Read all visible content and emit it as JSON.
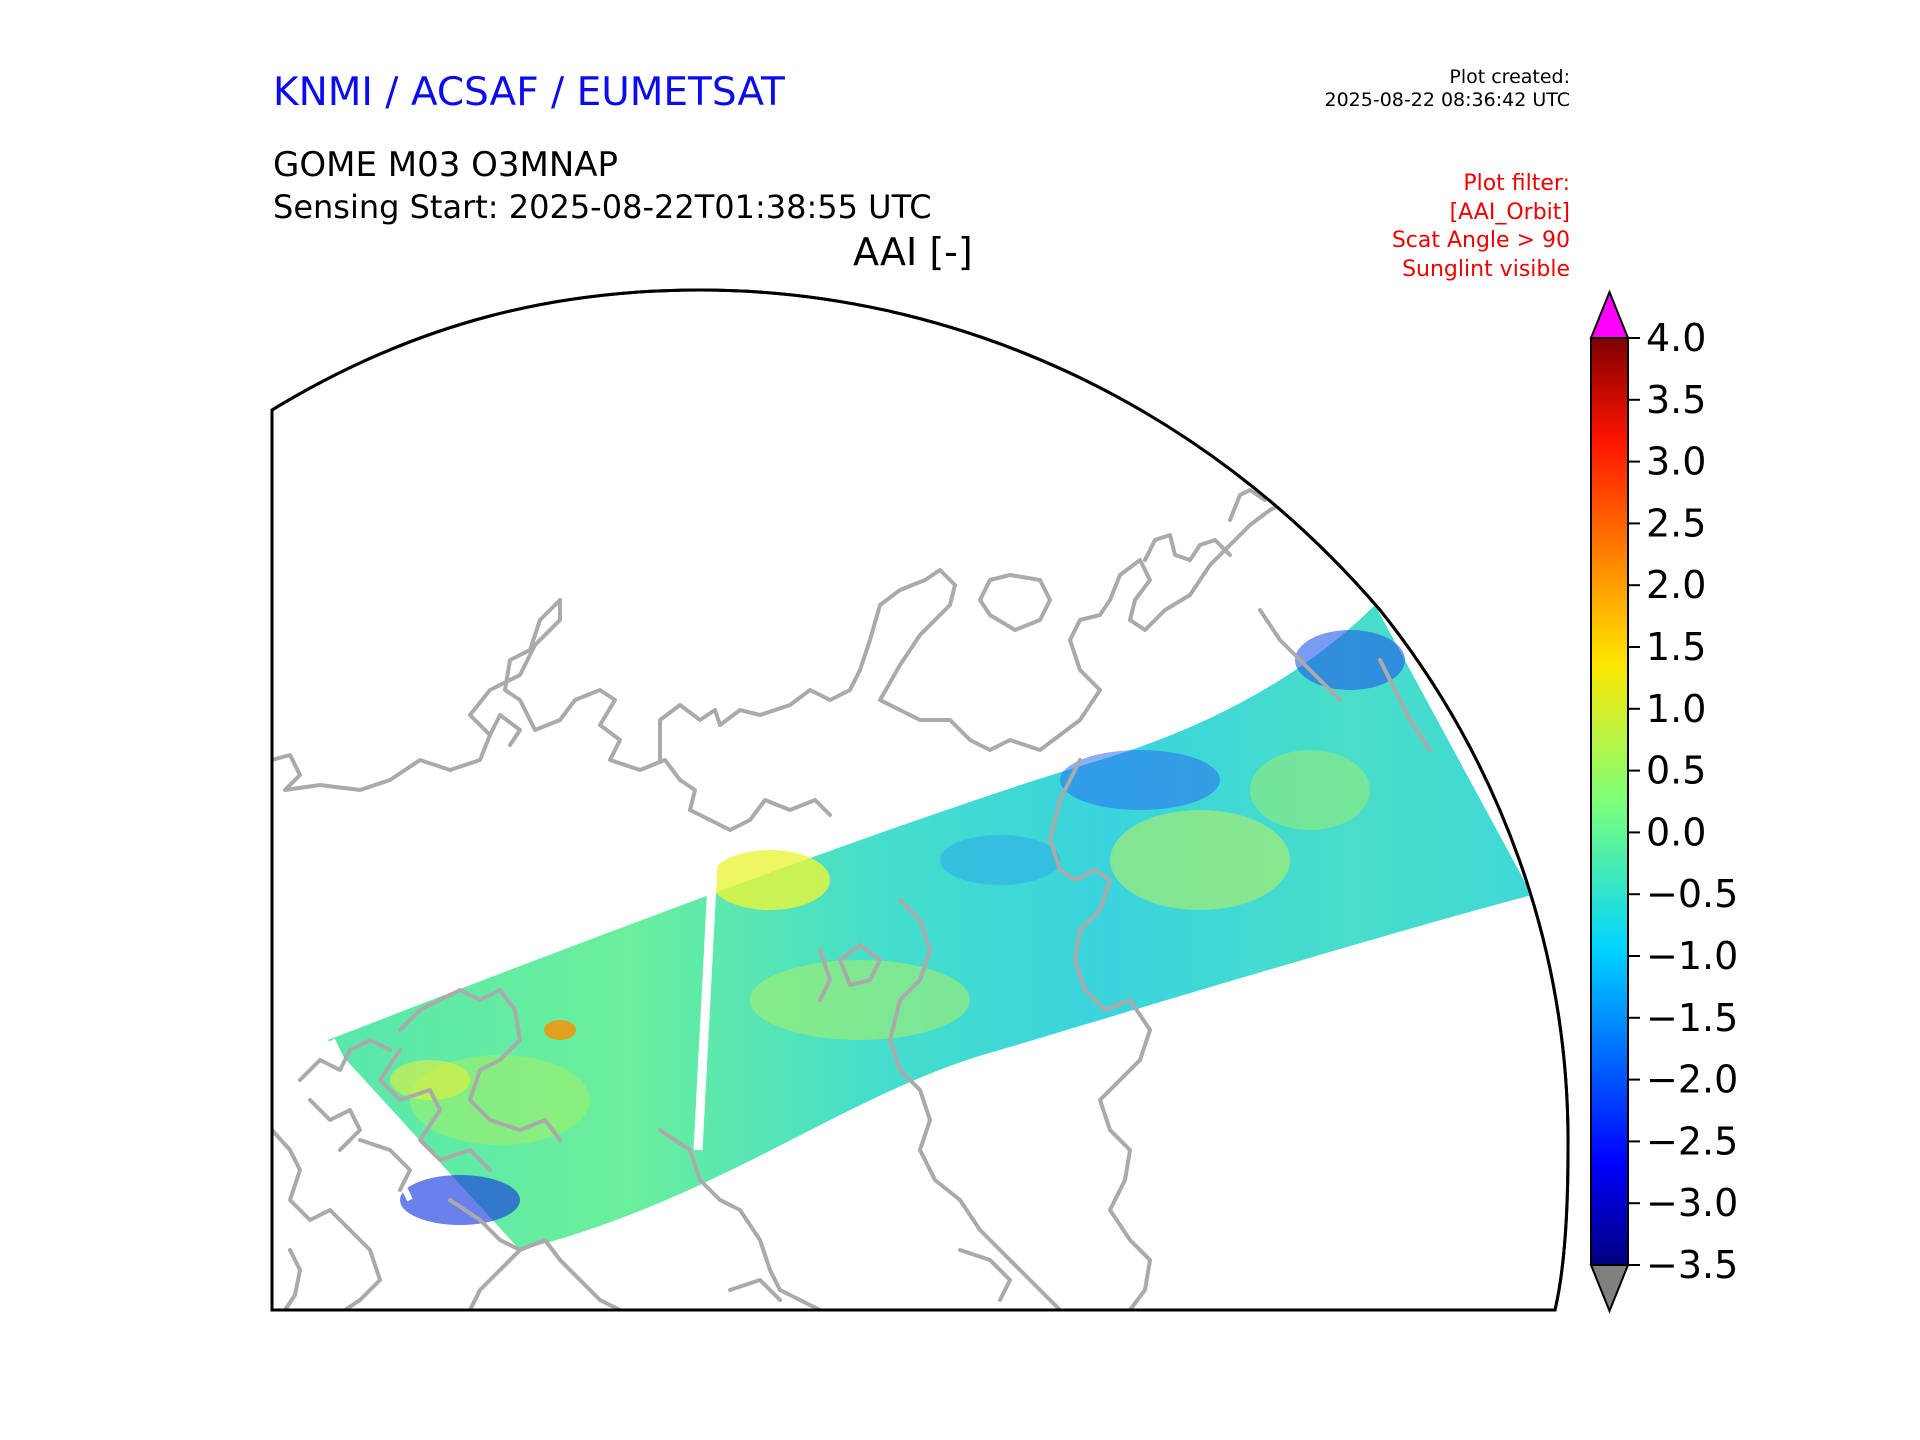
{
  "header": {
    "org_title": "KNMI / ACSAF / EUMETSAT",
    "plot_created_label": "Plot created:",
    "plot_created_time": "2025-08-22 08:36:42 UTC",
    "product_title": "GOME M03 O3MNAP",
    "sensing_start": "Sensing Start: 2025-08-22T01:38:55 UTC",
    "variable_label": "AAI [-]"
  },
  "filter": {
    "lines": [
      "Plot filter:",
      "[AAI_Orbit]",
      "Scat Angle > 90",
      "Sunglint visible"
    ]
  },
  "colorbar": {
    "ticks": [
      4.0,
      3.5,
      3.0,
      2.5,
      2.0,
      1.5,
      1.0,
      0.5,
      0.0,
      -0.5,
      -1.0,
      -1.5,
      -2.0,
      -2.5,
      -3.0,
      -3.5
    ],
    "tick_labels": [
      "4.0",
      "3.5",
      "3.0",
      "2.5",
      "2.0",
      "1.5",
      "1.0",
      "0.5",
      "0.0",
      "−0.5",
      "−1.0",
      "−1.5",
      "−2.0",
      "−2.5",
      "−3.0",
      "−3.5"
    ],
    "range": [
      -3.5,
      4.0
    ],
    "colormap": "jet",
    "extend_max_color": "#ff00ff",
    "extend_min_color": "#808080"
  },
  "map": {
    "coastline_color": "#aaaaaa",
    "swath_dominant_color": "#40e0c0"
  }
}
